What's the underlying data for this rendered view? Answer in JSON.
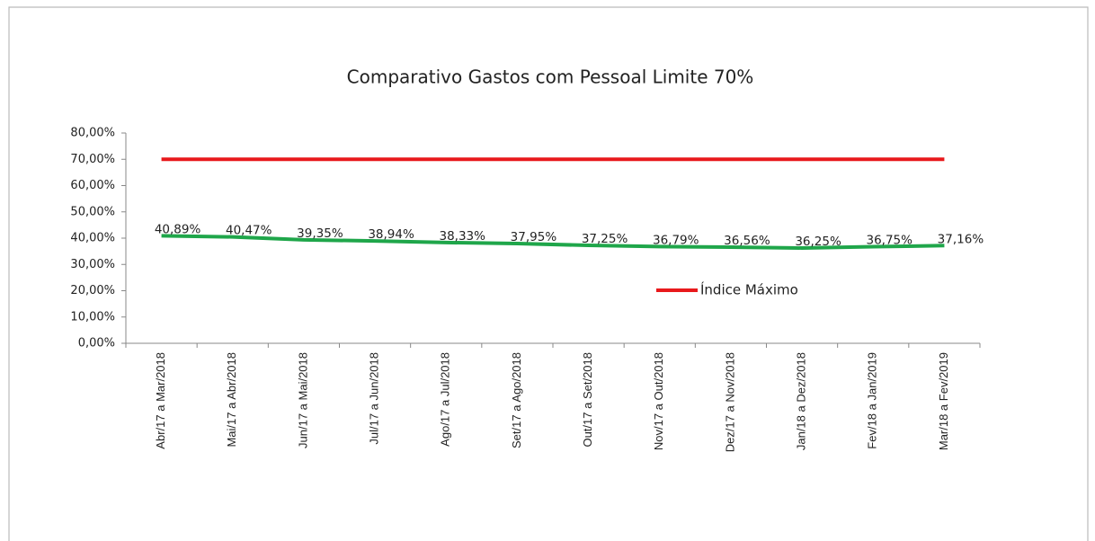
{
  "chart_data": {
    "type": "line",
    "title": "Comparativo Gastos com Pessoal Limite 70%",
    "categories": [
      "Abr/17 a Mar/2018",
      "Mai/17 a Abr/2018",
      "Jun/17 a Mai/2018",
      "Jul/17 a Jun/2018",
      "Ago/17 a Jul/2018",
      "Set/17 a Ago/2018",
      "Out/17 a Set/2018",
      "Nov/17 a Out/2018",
      "Dez/17 a Nov/2018",
      "Jan/18 a Dez/2018",
      "Fev/18 a Jan/2019",
      "Mar/18 a Fev/2019"
    ],
    "series": [
      {
        "color": "#1fa64a",
        "values": [
          40.89,
          40.47,
          39.35,
          38.94,
          38.33,
          37.95,
          37.25,
          36.79,
          36.56,
          36.25,
          36.75,
          37.16
        ],
        "value_labels": [
          "40,89%",
          "40,47%",
          "39,35%",
          "38,94%",
          "38,33%",
          "37,95%",
          "37,25%",
          "36,79%",
          "36,56%",
          "36,25%",
          "36,75%",
          "37,16%"
        ]
      },
      {
        "name": "Índice Máximo",
        "color": "#e8191c",
        "values": [
          70,
          70,
          70,
          70,
          70,
          70,
          70,
          70,
          70,
          70,
          70,
          70
        ]
      }
    ],
    "ylim": [
      0,
      80
    ],
    "yticks": [
      {
        "value": 0,
        "label": "0,00%"
      },
      {
        "value": 10,
        "label": "10,00%"
      },
      {
        "value": 20,
        "label": "20,00%"
      },
      {
        "value": 30,
        "label": "30,00%"
      },
      {
        "value": 40,
        "label": "40,00%"
      },
      {
        "value": 50,
        "label": "50,00%"
      },
      {
        "value": 60,
        "label": "60,00%"
      },
      {
        "value": 70,
        "label": "70,00%"
      },
      {
        "value": 80,
        "label": "80,00%"
      }
    ]
  }
}
